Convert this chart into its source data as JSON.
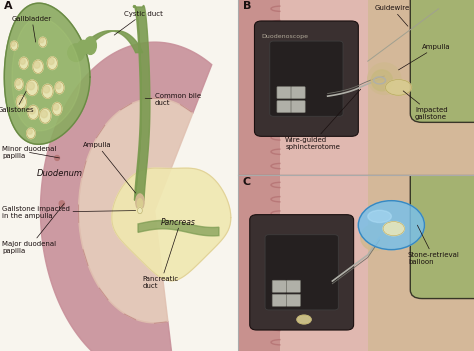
{
  "bg_color": "#f0ebe0",
  "colors": {
    "gallbladder_green": "#8aaa60",
    "gallbladder_dark": "#6a8a45",
    "gallbladder_light": "#a8c878",
    "bile_duct_green": "#7a9a50",
    "duodenum_outer": "#c8909a",
    "duodenum_inner_bg": "#e0c0b0",
    "duodenum_wall_inner": "#d4a0a0",
    "pancreas_yellow": "#e0d098",
    "pancreas_light": "#f0e8b0",
    "scope_dark": "#3a3030",
    "scope_medium": "#5a4a40",
    "scope_light": "#7a6a60",
    "metal_silver": "#b0b0a8",
    "metal_dark": "#707068",
    "balloon_blue": "#7ac0e8",
    "balloon_light": "#b0dff8",
    "text_dark": "#1a1010",
    "line_color": "#1a1010",
    "gallstone_cream": "#d8cc90",
    "gallstone_light": "#ece8b8",
    "gallstone_dark": "#b8a860",
    "tissue_tan": "#d0b890",
    "tissue_pink": "#e0b8b0",
    "green_tissue": "#90b060",
    "duod_fold_pink": "#b87878",
    "white_bg": "#f8f5ee"
  },
  "panel_A": {
    "label": "A",
    "gallbladder_label": "Gallbladder",
    "gallstones_label": "Gallstones",
    "cystic_duct_label": "Cystic duct",
    "common_bile_duct_label": "Common bile\nduct",
    "duodenum_label": "Duodenum",
    "ampulla_label": "Ampulla",
    "minor_papilla_label": "Minor duodenal\npapilla",
    "gallstone_impacted_label": "Gallstone impacted\nin the ampulla",
    "major_papilla_label": "Major duodenal\npapilla",
    "pancreas_label": "Pancreas",
    "pancreatic_duct_label": "Pancreatic\nduct"
  },
  "panel_B": {
    "label": "B",
    "duodenoscope_label": "Duodenoscope",
    "guidewire_label": "Guidewire",
    "ampulla_label": "Ampulla",
    "impacted_gallstone_label": "Impacted\ngallstone",
    "wire_guided_label": "Wire-guided\nsphincterotome"
  },
  "panel_C": {
    "label": "C",
    "stone_retrieval_label": "Stone-retrieval\nballoon"
  }
}
